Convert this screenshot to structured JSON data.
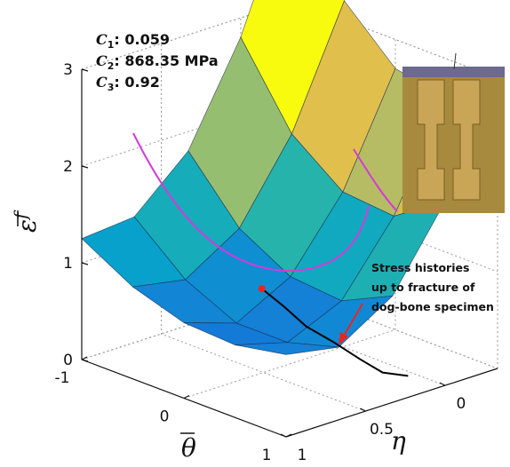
{
  "chart_data": {
    "type": "surface3d",
    "theta_label": "θ",
    "eta_label": "η",
    "z_label": "ε",
    "z_label_sup": "f",
    "theta_lim": [
      -1,
      1
    ],
    "eta_lim": [
      -0.33,
      1
    ],
    "zlim": [
      0,
      3
    ],
    "theta_ticks": [
      -1,
      0,
      1
    ],
    "eta_ticks": [
      0,
      0.5,
      1
    ],
    "zticks": [
      0,
      1,
      2,
      3
    ],
    "grid": true,
    "colormap": [
      "#352a87",
      "#0f5cdd",
      "#1481d6",
      "#06a4ca",
      "#2eb7a4",
      "#87bf77",
      "#d1bb59",
      "#fec832",
      "#f9fb0e"
    ],
    "clim": [
      0,
      3
    ],
    "surface": {
      "theta": [
        -1,
        -0.5,
        0,
        0.5,
        1
      ],
      "eta": [
        1,
        0.67,
        0.33,
        0,
        -0.33
      ],
      "z": [
        [
          1.25,
          0.95,
          0.78,
          0.75,
          0.85
        ],
        [
          1.3,
          0.85,
          0.6,
          0.6,
          0.75
        ],
        [
          1.8,
          1.2,
          0.9,
          0.85,
          1.1
        ],
        [
          2.8,
          2.0,
          1.6,
          1.55,
          1.9
        ],
        [
          4.2,
          3.2,
          2.7,
          2.6,
          3.0
        ]
      ]
    },
    "stress_path": {
      "theta": [
        0.7,
        0.7,
        0.7,
        0.7,
        0.7,
        0.7,
        0.7
      ],
      "eta": [
        0.96,
        0.82,
        0.68,
        0.51,
        0.34,
        0.2,
        0.04
      ],
      "z": [
        1.39,
        1.13,
        0.85,
        0.6,
        0.33,
        0.12,
        0
      ],
      "color": "#000000",
      "marker_color": "#e8261f"
    },
    "params": [
      {
        "symbol": "C",
        "sub": "1",
        "value": ": 0.059"
      },
      {
        "symbol": "C",
        "sub": "2",
        "value": ": 868.35 MPa"
      },
      {
        "symbol": "C",
        "sub": "3",
        "value": ": 0.92"
      }
    ],
    "annotation": [
      "Stress histories",
      "up to fracture of",
      "dog-bone specimen"
    ]
  }
}
